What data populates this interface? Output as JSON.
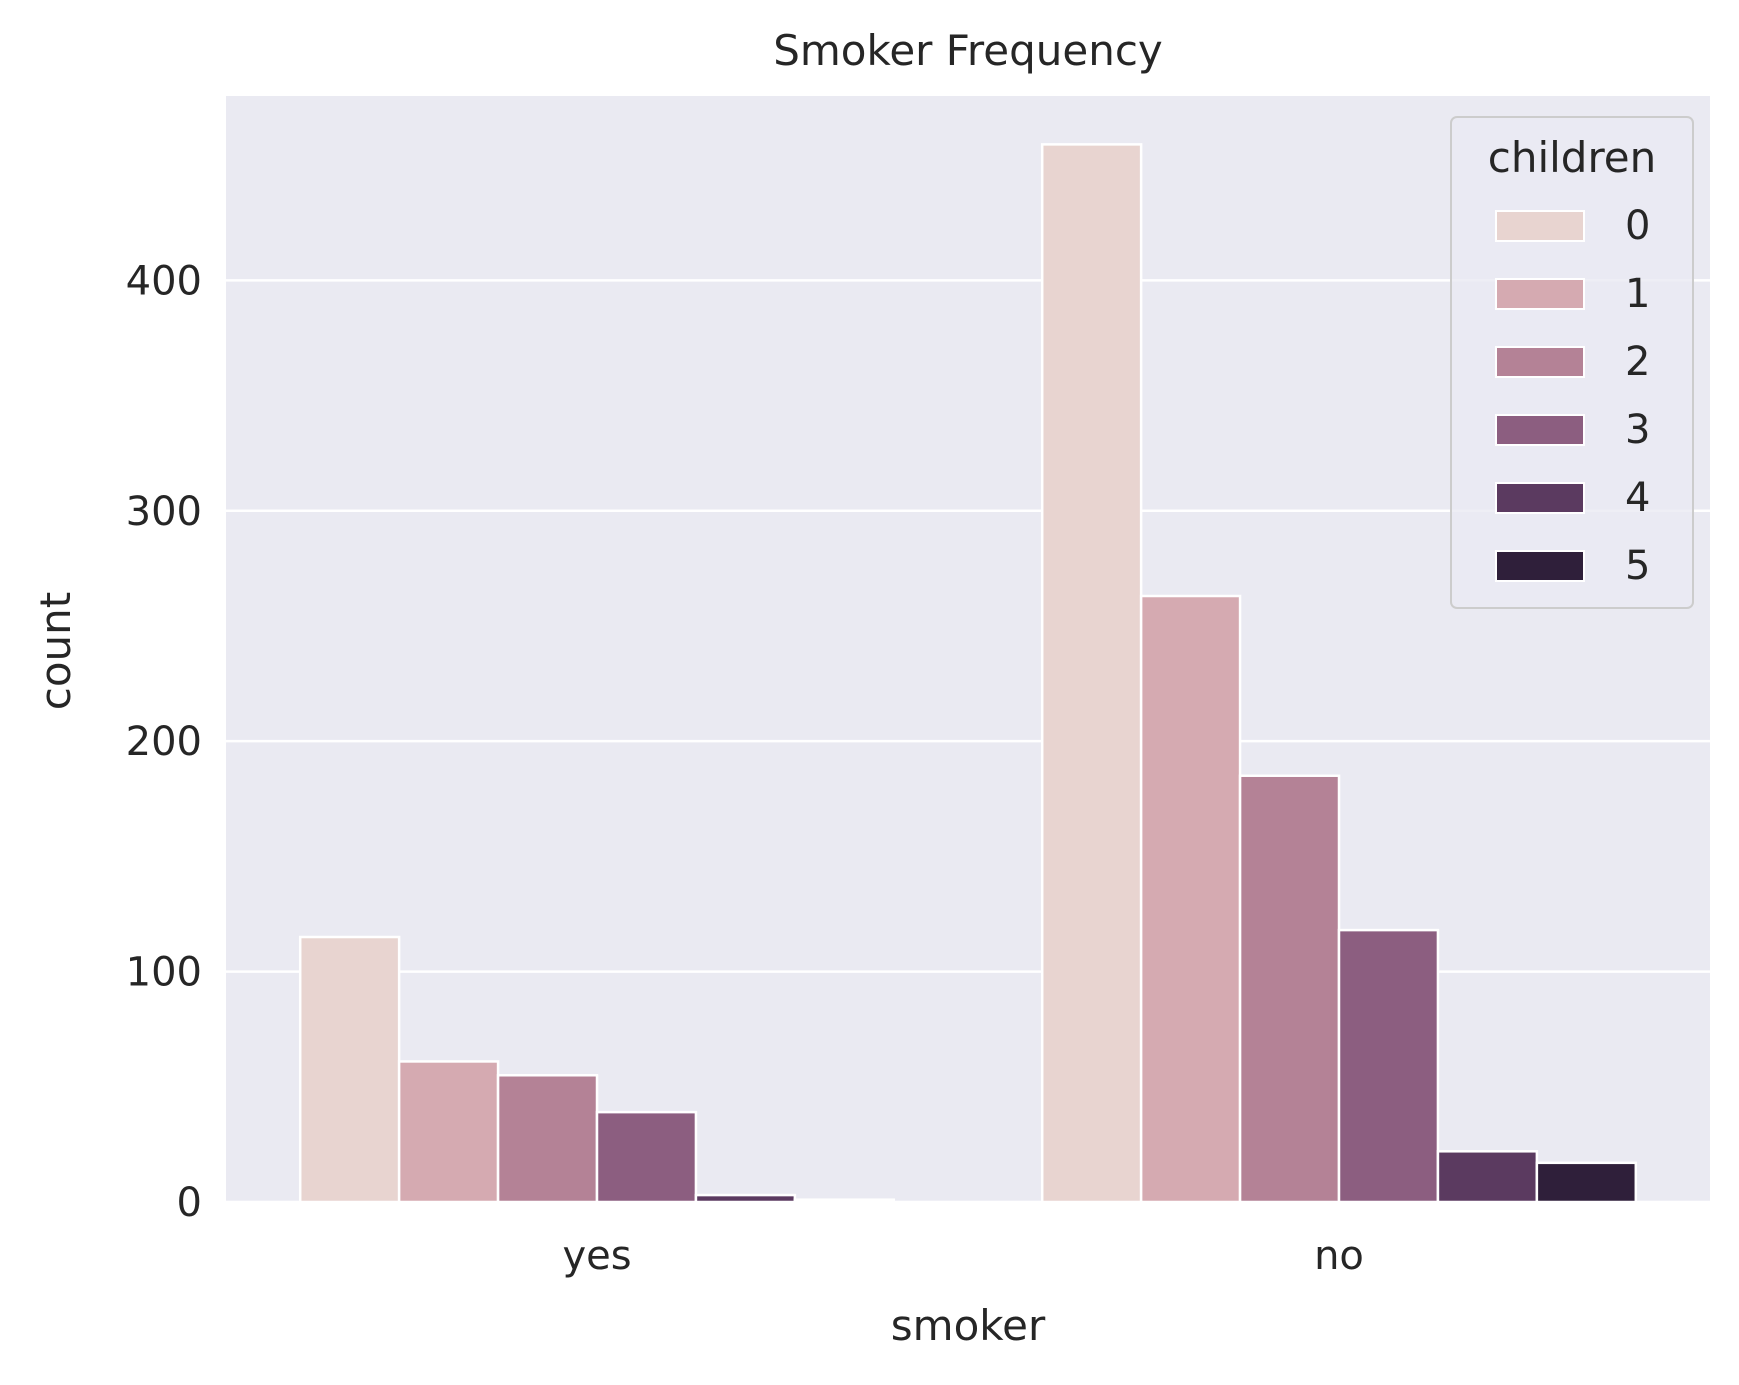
{
  "chart_data": {
    "type": "bar",
    "title": "Smoker Frequency",
    "xlabel": "smoker",
    "ylabel": "count",
    "categories": [
      "yes",
      "no"
    ],
    "ylim": [
      0,
      480
    ],
    "yticks": [
      0,
      100,
      200,
      300,
      400
    ],
    "grid": true,
    "legend": {
      "title": "children",
      "placement": "top-right"
    },
    "series": [
      {
        "name": "0",
        "values": [
          115,
          459
        ],
        "color": "#e8d4d0"
      },
      {
        "name": "1",
        "values": [
          61,
          263
        ],
        "color": "#d5aab1"
      },
      {
        "name": "2",
        "values": [
          55,
          185
        ],
        "color": "#b48296"
      },
      {
        "name": "3",
        "values": [
          39,
          118
        ],
        "color": "#8c5e80"
      },
      {
        "name": "4",
        "values": [
          3,
          22
        ],
        "color": "#5b3a60"
      },
      {
        "name": "5",
        "values": [
          1,
          17
        ],
        "color": "#2f1f3a"
      }
    ],
    "colors": {
      "plot_background": "#eaeaf2",
      "grid": "#ffffff",
      "text": "#262626"
    }
  }
}
